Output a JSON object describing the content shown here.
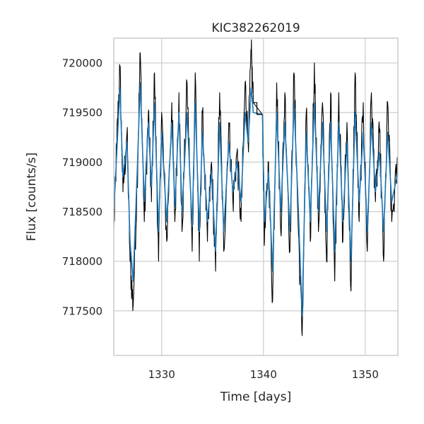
{
  "chart_data": {
    "type": "line",
    "title": "KIC382262019",
    "xlabel": "Time [days]",
    "ylabel": "Flux [counts/s]",
    "xlim": [
      1325.3,
      1353.2
    ],
    "ylim": [
      717050,
      720250
    ],
    "xticks": [
      1330,
      1340,
      1350
    ],
    "yticks": [
      717500,
      718000,
      718500,
      719000,
      719500,
      720000
    ],
    "xtick_labels": [
      "1330",
      "1340",
      "1350"
    ],
    "ytick_labels": [
      "717500",
      "718000",
      "718500",
      "719000",
      "719500",
      "720000"
    ],
    "grid": true,
    "gap": {
      "start": 1339.0,
      "end": 1339.9,
      "value_first": 719600,
      "value_second": 719480
    },
    "series": [
      {
        "color": "#000000",
        "style": "raw",
        "x": [
          1325.3,
          1325.6,
          1325.9,
          1326.2,
          1326.6,
          1326.9,
          1327.2,
          1327.6,
          1327.9,
          1328.3,
          1328.7,
          1329.0,
          1329.3,
          1329.7,
          1330.0,
          1330.5,
          1331.0,
          1331.3,
          1331.7,
          1332.0,
          1332.5,
          1333.0,
          1333.3,
          1333.7,
          1334.0,
          1334.5,
          1334.9,
          1335.3,
          1335.7,
          1336.1,
          1336.6,
          1337.0,
          1337.4,
          1337.8,
          1338.2,
          1338.5,
          1338.8,
          1339.0,
          1339.9,
          1340.1,
          1340.5,
          1340.9,
          1341.3,
          1341.7,
          1342.1,
          1342.6,
          1343.0,
          1343.4,
          1343.8,
          1344.2,
          1344.6,
          1345.0,
          1345.4,
          1345.8,
          1346.2,
          1346.6,
          1347.0,
          1347.4,
          1347.8,
          1348.2,
          1348.6,
          1349.0,
          1349.4,
          1349.8,
          1350.2,
          1350.6,
          1351.0,
          1351.4,
          1351.8,
          1352.2,
          1352.6,
          1353.2
        ],
        "y": [
          718300,
          719200,
          719950,
          718700,
          719300,
          718000,
          717550,
          718800,
          720100,
          718400,
          719500,
          718600,
          719900,
          718000,
          719500,
          718200,
          719600,
          718400,
          719700,
          718300,
          719800,
          718100,
          719900,
          718000,
          719500,
          718200,
          719000,
          717900,
          719700,
          718100,
          719400,
          718600,
          719100,
          718400,
          719800,
          719200,
          720100,
          719600,
          719480,
          718200,
          719000,
          717600,
          719800,
          718300,
          719700,
          718100,
          719900,
          718400,
          717250,
          719500,
          718200,
          720000,
          718300,
          719600,
          718000,
          719700,
          717800,
          719700,
          718200,
          719400,
          717700,
          719900,
          718400,
          719600,
          718100,
          719700,
          718600,
          719300,
          718000,
          719600,
          718400,
          719000
        ]
      },
      {
        "color": "#1f77b4",
        "style": "smoothed",
        "x": [
          1325.3,
          1325.6,
          1325.9,
          1326.2,
          1326.6,
          1326.9,
          1327.2,
          1327.6,
          1327.9,
          1328.3,
          1328.7,
          1329.0,
          1329.3,
          1329.7,
          1330.0,
          1330.5,
          1331.0,
          1331.3,
          1331.7,
          1332.0,
          1332.5,
          1333.0,
          1333.3,
          1333.7,
          1334.0,
          1334.5,
          1334.9,
          1335.3,
          1335.7,
          1336.1,
          1336.6,
          1337.0,
          1337.4,
          1337.8,
          1338.2,
          1338.5,
          1338.8,
          1339.0,
          1339.9,
          1340.1,
          1340.5,
          1340.9,
          1341.3,
          1341.7,
          1342.1,
          1342.6,
          1343.0,
          1343.4,
          1343.8,
          1344.2,
          1344.6,
          1345.0,
          1345.4,
          1345.8,
          1346.2,
          1346.6,
          1347.0,
          1347.4,
          1347.8,
          1348.2,
          1348.6,
          1349.0,
          1349.4,
          1349.8,
          1350.2,
          1350.6,
          1351.0,
          1351.4,
          1351.8,
          1352.2,
          1352.6,
          1353.2
        ],
        "y": [
          718500,
          719100,
          719750,
          718850,
          719200,
          718200,
          717800,
          718900,
          719800,
          718600,
          719400,
          718750,
          719600,
          718300,
          719300,
          718400,
          719400,
          718550,
          719500,
          718500,
          719500,
          718350,
          719600,
          718300,
          719300,
          718400,
          718900,
          718100,
          719400,
          718300,
          719200,
          718700,
          719000,
          718600,
          719500,
          719200,
          719750,
          719500,
          719480,
          718400,
          718900,
          717900,
          719500,
          718500,
          719400,
          718300,
          719600,
          718600,
          717450,
          719300,
          718400,
          719600,
          718500,
          719400,
          718300,
          719400,
          718100,
          719400,
          718400,
          719200,
          718000,
          719500,
          718600,
          719300,
          718300,
          719400,
          718700,
          719100,
          718300,
          719300,
          718600,
          718900
        ]
      }
    ]
  }
}
